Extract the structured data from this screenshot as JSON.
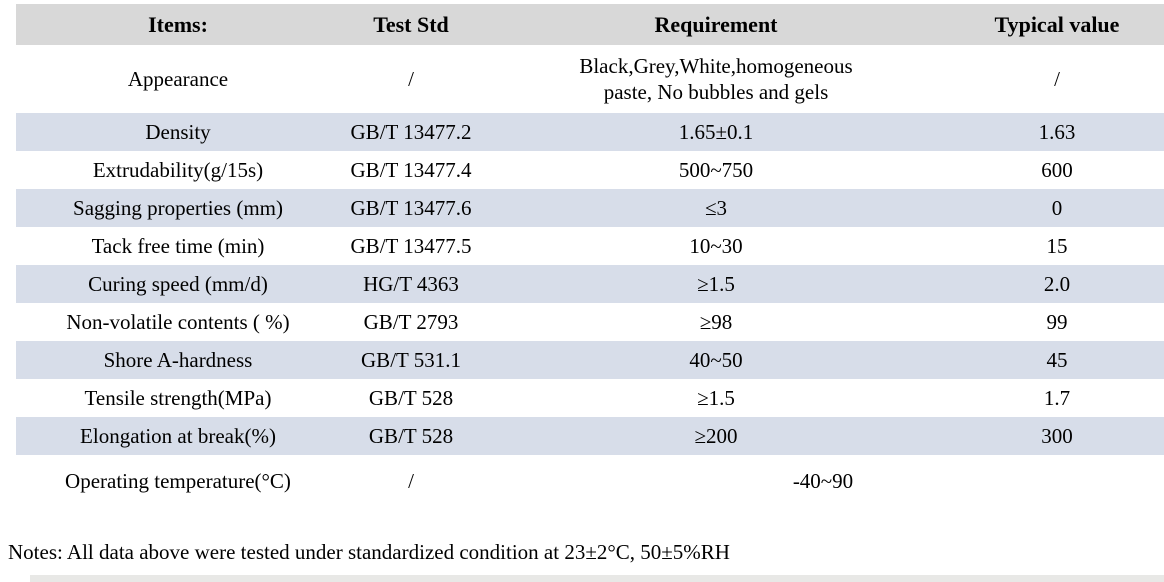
{
  "table": {
    "header": {
      "items": "Items:",
      "test_std": "Test Std",
      "requirement": "Requirement",
      "typical": "Typical value"
    },
    "rows": [
      {
        "item": "Appearance",
        "test_std": "/",
        "requirement": [
          "Black,Grey,White,homogeneous",
          "paste, No bubbles and gels"
        ],
        "typical": "/"
      },
      {
        "item": "Density",
        "test_std": "GB/T 13477.2",
        "requirement": "1.65±0.1",
        "typical": "1.63"
      },
      {
        "item": "Extrudability(g/15s)",
        "test_std": "GB/T 13477.4",
        "requirement": "500~750",
        "typical": "600"
      },
      {
        "item": "Sagging properties (mm)",
        "test_std": "GB/T 13477.6",
        "requirement": "≤3",
        "typical": "0"
      },
      {
        "item": "Tack free time (min)",
        "test_std": "GB/T 13477.5",
        "requirement": "10~30",
        "typical": "15"
      },
      {
        "item": "Curing speed (mm/d)",
        "test_std": "HG/T 4363",
        "requirement": "≥1.5",
        "typical": "2.0"
      },
      {
        "item": "Non-volatile contents ( %)",
        "test_std": "GB/T 2793",
        "requirement": "≥98",
        "typical": "99"
      },
      {
        "item": "Shore A-hardness",
        "test_std": "GB/T 531.1",
        "requirement": "40~50",
        "typical": "45"
      },
      {
        "item": "Tensile strength(MPa)",
        "test_std": "GB/T 528",
        "requirement": "≥1.5",
        "typical": "1.7"
      },
      {
        "item": "Elongation at break(%)",
        "test_std": "GB/T 528",
        "requirement": "≥200",
        "typical": "300"
      },
      {
        "item": "Operating temperature(°C)",
        "test_std": "/",
        "requirement": "-40~90",
        "typical": "",
        "span": 2
      }
    ],
    "colors": {
      "header_bg": "#d8d8d8",
      "stripe_bg": "#d7dde9",
      "cutoff_strip_bg": "#e8e8e6"
    }
  },
  "notes": "Notes: All data above were tested under standardized condition at 23±2°C, 50±5%RH"
}
